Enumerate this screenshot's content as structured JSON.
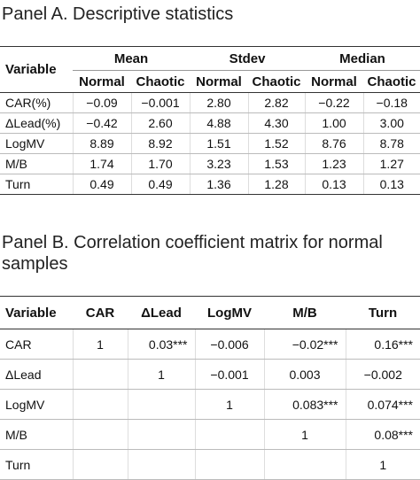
{
  "panelA": {
    "title": "Panel A. Descriptive statistics",
    "var_header": "Variable",
    "groups": [
      "Mean",
      "Stdev",
      "Median"
    ],
    "sub_headers": [
      "Normal",
      "Chaotic",
      "Normal",
      "Chaotic",
      "Normal",
      "Chaotic"
    ],
    "rows": [
      {
        "label": "CAR(%)",
        "values": [
          "−0.09",
          "−0.001",
          "2.80",
          "2.82",
          "−0.22",
          "−0.18"
        ]
      },
      {
        "label": "ΔLead(%)",
        "values": [
          "−0.42",
          "2.60",
          "4.88",
          "4.30",
          "1.00",
          "3.00"
        ]
      },
      {
        "label": "LogMV",
        "values": [
          "8.89",
          "8.92",
          "1.51",
          "1.52",
          "8.76",
          "8.78"
        ]
      },
      {
        "label": "M/B",
        "values": [
          "1.74",
          "1.70",
          "3.23",
          "1.53",
          "1.23",
          "1.27"
        ]
      },
      {
        "label": "Turn",
        "values": [
          "0.49",
          "0.49",
          "1.36",
          "1.28",
          "0.13",
          "0.13"
        ]
      }
    ]
  },
  "panelB": {
    "title": "Panel B. Correlation coefficient matrix for normal samples",
    "headers": [
      "Variable",
      "CAR",
      "ΔLead",
      "LogMV",
      "M/B",
      "Turn"
    ],
    "rows": [
      {
        "label": "CAR",
        "values": [
          "1",
          "0.03***",
          "−0.006",
          "−0.02***",
          "0.16***"
        ]
      },
      {
        "label": "ΔLead",
        "values": [
          "",
          "1",
          "−0.001",
          "0.003",
          "−0.002"
        ]
      },
      {
        "label": "LogMV",
        "values": [
          "",
          "",
          "1",
          "0.083***",
          "0.074***"
        ]
      },
      {
        "label": "M/B",
        "values": [
          "",
          "",
          "",
          "1",
          "0.08***"
        ]
      },
      {
        "label": "Turn",
        "values": [
          "",
          "",
          "",
          "",
          "1"
        ]
      }
    ]
  }
}
